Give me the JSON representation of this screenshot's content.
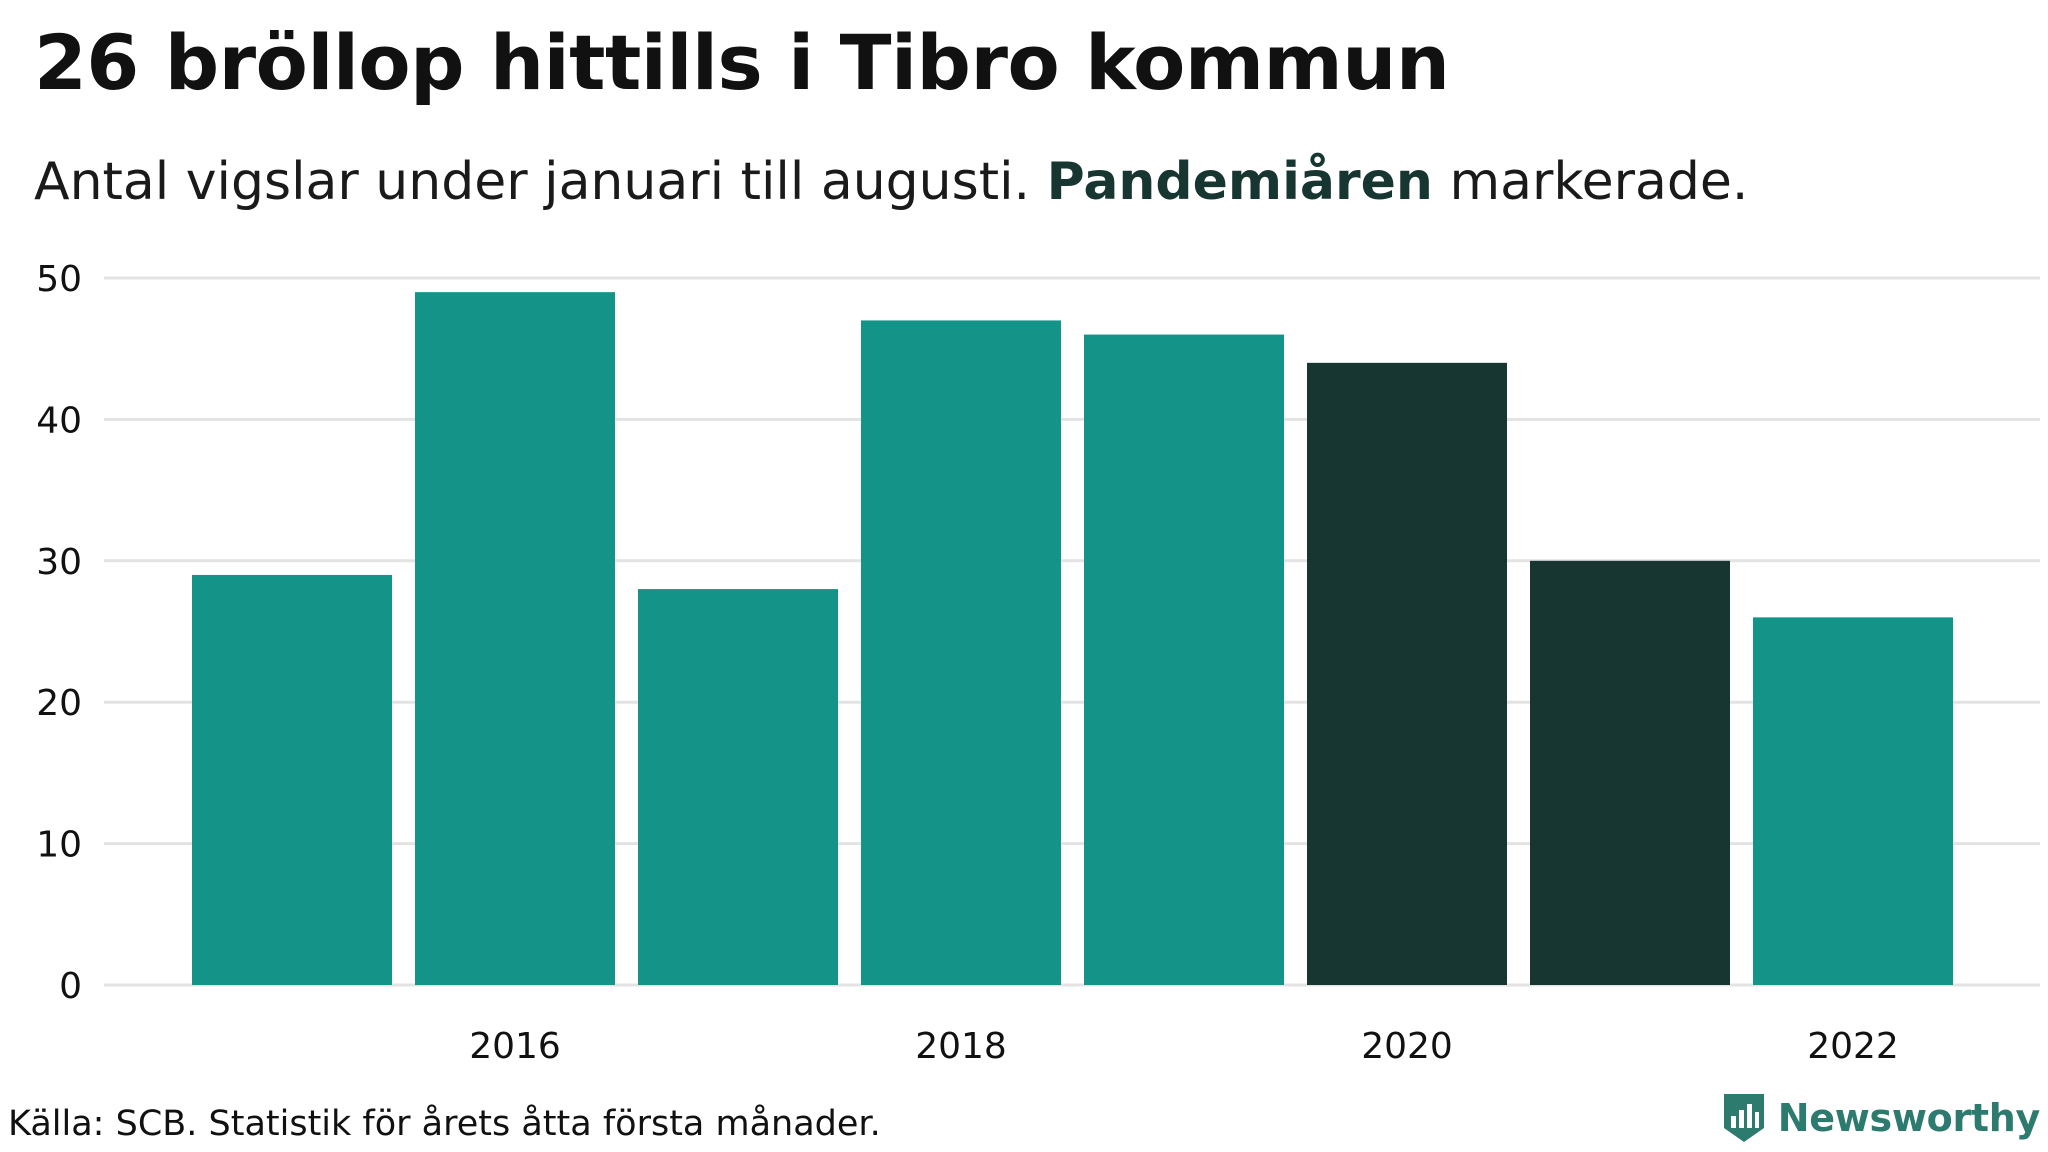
{
  "title": "26 bröllop hittills i Tibro kommun",
  "subtitle": {
    "before": "Antal vigslar under januari till augusti. ",
    "highlight": "Pandemiåren",
    "after": " markerade."
  },
  "source": "Källa: SCB. Statistik för årets åtta första månader.",
  "brand": "Newsworthy",
  "colors": {
    "normal": "#149488",
    "highlight": "#183631",
    "grid": "#e3e3e3",
    "brand": "#2d7a6e"
  },
  "chart_data": {
    "type": "bar",
    "categories": [
      "2015",
      "2016",
      "2017",
      "2018",
      "2019",
      "2020",
      "2021",
      "2022"
    ],
    "values": [
      29,
      49,
      28,
      47,
      46,
      44,
      30,
      26
    ],
    "highlighted": [
      "2020",
      "2021"
    ],
    "ylim": [
      0,
      50
    ],
    "yticks": [
      0,
      10,
      20,
      30,
      40,
      50
    ],
    "xtick_labels": [
      "2016",
      "2018",
      "2020",
      "2022"
    ],
    "grid": true
  }
}
